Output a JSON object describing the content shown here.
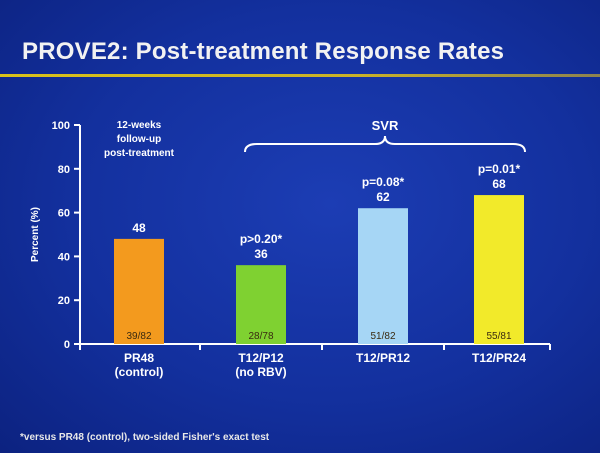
{
  "slide": {
    "title": "PROVE2: Post-treatment Response Rates",
    "footnote": "*versus PR48 (control), two-sided Fisher's exact test",
    "accent_color": "#d9c21a",
    "background_color": "#13309e"
  },
  "chart_data": {
    "type": "bar",
    "title": "",
    "ylabel": "Percent (%)",
    "xlabel": "",
    "ylim": [
      0,
      100
    ],
    "yticks": [
      0,
      20,
      40,
      60,
      80,
      100
    ],
    "grid": false,
    "legend": "none",
    "categories": [
      [
        "PR48",
        "(control)"
      ],
      [
        "T12/P12",
        "(no RBV)"
      ],
      [
        "T12/PR12"
      ],
      [
        "T12/PR24"
      ]
    ],
    "values": [
      48,
      36,
      62,
      68
    ],
    "value_labels": [
      "48",
      "36",
      "62",
      "68"
    ],
    "counts": [
      "39/82",
      "28/78",
      "51/82",
      "55/81"
    ],
    "p_values": [
      "",
      "p>0.20*",
      "p=0.08*",
      "p=0.01*"
    ],
    "colors": [
      "#f39a1e",
      "#7fd131",
      "#a6d6f5",
      "#f2ea2a"
    ],
    "annotations": {
      "followup": [
        "12-weeks",
        "follow-up",
        "post-treatment"
      ],
      "svr_bracket_label": "SVR"
    }
  }
}
